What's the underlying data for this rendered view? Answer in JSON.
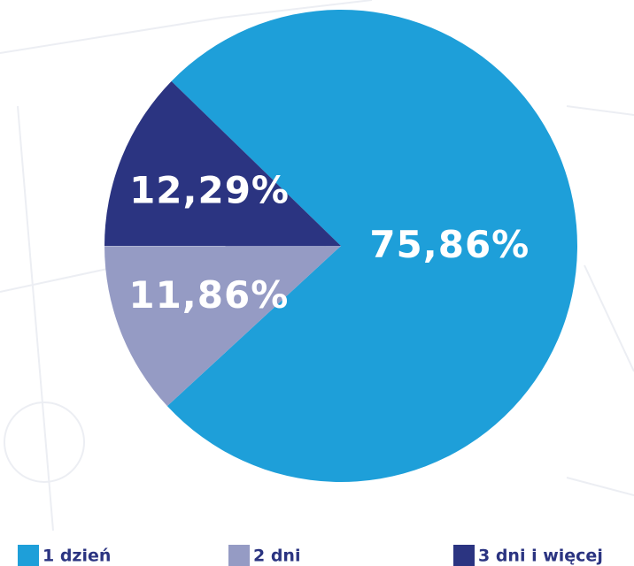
{
  "chart_data": {
    "type": "pie",
    "categories": [
      "1 dzień",
      "2 dni",
      "3 dni i więcej"
    ],
    "values": [
      75.86,
      11.86,
      12.29
    ],
    "value_labels": [
      "75,86%",
      "11,86%",
      "12,29%"
    ],
    "colors": [
      "#1e9fd9",
      "#959bc4",
      "#2b3481"
    ]
  }
}
